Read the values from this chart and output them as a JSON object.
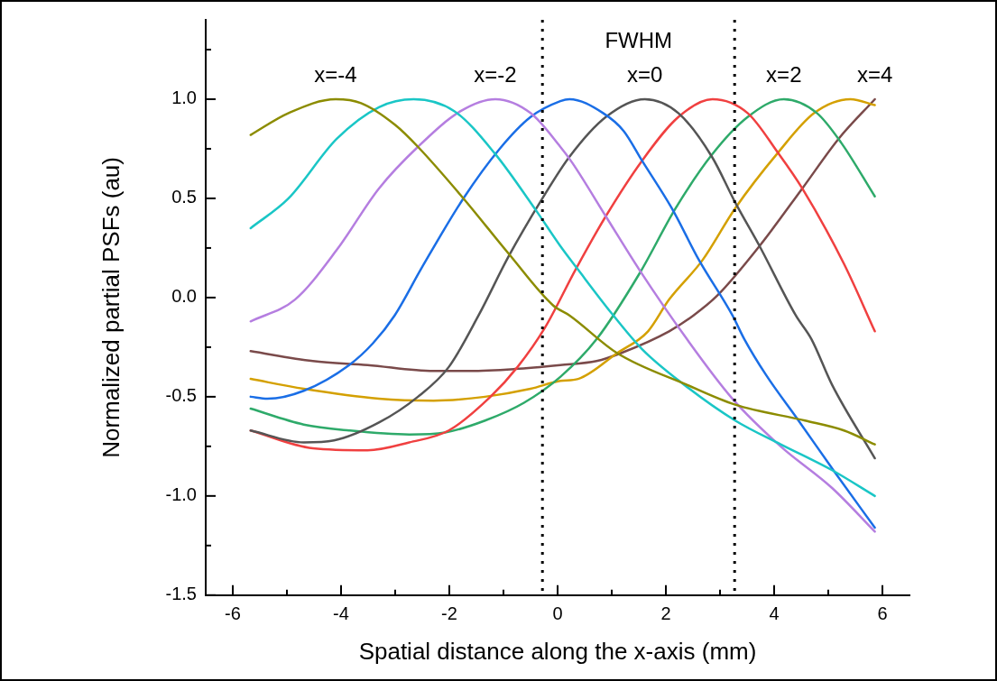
{
  "chart_data": {
    "type": "line",
    "xlabel": "Spatial distance along the x-axis (mm)",
    "ylabel": "Normalized partial PSFs (au)",
    "xlim": [
      -6.5,
      6.5
    ],
    "ylim": [
      -1.5,
      1.4
    ],
    "xticks": [
      -6,
      {
        "value": -5,
        "label": null
      },
      -4,
      {
        "value": -3,
        "label": null
      },
      -2,
      {
        "value": -1,
        "label": null
      },
      0,
      {
        "value": 1,
        "label": null
      },
      2,
      {
        "value": 3,
        "label": null
      },
      4,
      {
        "value": 5,
        "label": null
      },
      6
    ],
    "yticks": [
      -1.5,
      {
        "value": -1.25,
        "label": null
      },
      {
        "value": -1,
        "label": "-1.0"
      },
      {
        "value": -0.75,
        "label": null
      },
      -0.5,
      {
        "value": -0.25,
        "label": null
      },
      {
        "value": 0,
        "label": "0.0"
      },
      {
        "value": 0.25,
        "label": null
      },
      0.5,
      {
        "value": 0.75,
        "label": null
      },
      {
        "value": 1,
        "label": "1.0"
      },
      {
        "value": 1.25,
        "label": null
      }
    ],
    "grid": false,
    "legend": false,
    "marker": "none",
    "line_style": "solid",
    "series": [
      {
        "name": "x=-4",
        "color": "#8c8c00",
        "x": [
          -5.67,
          -4.97,
          -4.1,
          -3.63,
          -3.0,
          -2.58,
          -1.74,
          -0.9,
          -0.08,
          0.22,
          1.1,
          2.39,
          3.28,
          4.57,
          5.29,
          5.86
        ],
        "values": [
          0.82,
          0.93,
          1.0,
          0.98,
          0.87,
          0.76,
          0.5,
          0.22,
          -0.04,
          -0.09,
          -0.28,
          -0.44,
          -0.54,
          -0.62,
          -0.67,
          -0.74
        ]
      },
      {
        "color": "#1ac6c6",
        "x": [
          -5.67,
          -4.97,
          -4.08,
          -3.3,
          -2.66,
          -1.91,
          -1.17,
          -0.4,
          0.05,
          0.38,
          1.0,
          1.56,
          2.34,
          3.28,
          4.12,
          5.07,
          5.86
        ],
        "values": [
          0.35,
          0.5,
          0.8,
          0.96,
          1.0,
          0.94,
          0.73,
          0.44,
          0.26,
          0.14,
          -0.08,
          -0.26,
          -0.44,
          -0.62,
          -0.74,
          -0.87,
          -1.0
        ]
      },
      {
        "name": "x=-2",
        "color": "#b57ee0",
        "x": [
          -5.67,
          -4.85,
          -4.08,
          -3.3,
          -2.58,
          -1.79,
          -1.15,
          -0.5,
          0.05,
          0.27,
          0.89,
          1.51,
          2.39,
          3.23,
          4.12,
          5.07,
          5.86
        ],
        "values": [
          -0.12,
          -0.01,
          0.24,
          0.55,
          0.76,
          0.94,
          1.0,
          0.93,
          0.76,
          0.68,
          0.41,
          0.14,
          -0.21,
          -0.51,
          -0.75,
          -0.96,
          -1.18
        ]
      },
      {
        "color": "#1a6ee6",
        "x": [
          -5.67,
          -5.36,
          -4.69,
          -3.85,
          -3.41,
          -3.01,
          -2.51,
          -1.74,
          -1.07,
          -0.5,
          0.05,
          0.22,
          0.84,
          1.22,
          1.56,
          2.11,
          2.61,
          3.23,
          3.45,
          3.85,
          4.45,
          5.12,
          5.86
        ],
        "values": [
          -0.5,
          -0.51,
          -0.47,
          -0.34,
          -0.23,
          -0.09,
          0.15,
          0.5,
          0.75,
          0.91,
          0.99,
          1.0,
          0.93,
          0.84,
          0.69,
          0.45,
          0.19,
          -0.09,
          -0.21,
          -0.39,
          -0.62,
          -0.88,
          -1.16
        ]
      },
      {
        "name": "x=0",
        "color": "#555555",
        "x": [
          -5.67,
          -4.69,
          -4.13,
          -3.3,
          -2.58,
          -2.01,
          -1.46,
          -0.9,
          -0.28,
          0.22,
          0.89,
          1.61,
          2.23,
          2.85,
          3.28,
          3.73,
          4.4,
          4.69,
          5.07,
          5.86
        ],
        "values": [
          -0.67,
          -0.73,
          -0.72,
          -0.63,
          -0.5,
          -0.35,
          -0.09,
          0.21,
          0.5,
          0.71,
          0.91,
          1.0,
          0.93,
          0.71,
          0.48,
          0.26,
          -0.09,
          -0.21,
          -0.44,
          -0.81
        ]
      },
      {
        "color": "#f04040",
        "x": [
          -5.67,
          -4.52,
          -3.51,
          -2.74,
          -2.01,
          -1.24,
          -0.74,
          -0.23,
          0.33,
          0.89,
          1.56,
          2.23,
          2.86,
          3.51,
          4.07,
          4.52,
          5.29,
          5.86
        ],
        "values": [
          -0.67,
          -0.76,
          -0.77,
          -0.73,
          -0.67,
          -0.5,
          -0.35,
          -0.15,
          0.14,
          0.41,
          0.69,
          0.91,
          1.0,
          0.93,
          0.73,
          0.55,
          0.17,
          -0.17
        ]
      },
      {
        "name": "x=2",
        "color": "#2eaa6a",
        "x": [
          -5.67,
          -4.69,
          -3.85,
          -2.74,
          -2.08,
          -1.34,
          -0.62,
          0.05,
          0.72,
          1.51,
          2.18,
          2.85,
          3.51,
          4.18,
          4.79,
          5.24,
          5.86
        ],
        "values": [
          -0.56,
          -0.64,
          -0.67,
          -0.69,
          -0.68,
          -0.62,
          -0.53,
          -0.4,
          -0.21,
          0.12,
          0.45,
          0.72,
          0.91,
          1.0,
          0.93,
          0.78,
          0.51
        ]
      },
      {
        "color": "#d4a000",
        "x": [
          -5.67,
          -4.69,
          -3.3,
          -2.29,
          -1.34,
          -0.5,
          0.05,
          0.38,
          1.1,
          1.67,
          2.06,
          2.68,
          3.28,
          4.07,
          4.74,
          5.41,
          5.86
        ],
        "values": [
          -0.41,
          -0.46,
          -0.51,
          -0.52,
          -0.5,
          -0.46,
          -0.42,
          -0.41,
          -0.28,
          -0.17,
          -0.01,
          0.19,
          0.45,
          0.73,
          0.93,
          1.0,
          0.97
        ]
      },
      {
        "name": "x=4",
        "color": "#7a4a4a",
        "x": [
          -5.67,
          -4.52,
          -3.51,
          -2.29,
          -1.62,
          -0.79,
          0.05,
          0.72,
          1.17,
          2.06,
          2.51,
          2.95,
          3.73,
          4.52,
          5.19,
          5.86
        ],
        "values": [
          -0.27,
          -0.32,
          -0.34,
          -0.37,
          -0.37,
          -0.36,
          -0.34,
          -0.32,
          -0.28,
          -0.17,
          -0.09,
          0.01,
          0.26,
          0.55,
          0.8,
          1.0
        ]
      }
    ],
    "ref_lines": [
      {
        "axis": "x",
        "value": -0.28,
        "color": "#000000",
        "line_style": "dotted"
      },
      {
        "axis": "x",
        "value": 3.27,
        "color": "#000000",
        "line_style": "dotted"
      }
    ],
    "annotations": [
      "FWHM"
    ]
  }
}
